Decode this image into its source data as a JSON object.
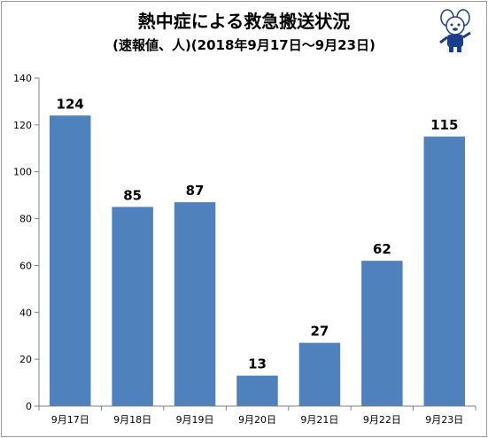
{
  "header": {
    "title": "熱中症による救急搬送状況",
    "subtitle": "(速報値、人)(2018年9月17日～9月23日)"
  },
  "mascot": {
    "icon": "mascot-icon"
  },
  "chart_data": {
    "type": "bar",
    "title": "熱中症による救急搬送状況",
    "subtitle": "(速報値、人)(2018年9月17日～9月23日)",
    "categories": [
      "9月17日",
      "9月18日",
      "9月19日",
      "9月20日",
      "9月21日",
      "9月22日",
      "9月23日"
    ],
    "values": [
      124,
      85,
      87,
      13,
      27,
      62,
      115
    ],
    "xlabel": "",
    "ylabel": "",
    "ylim": [
      0,
      140
    ],
    "yticks": [
      0,
      20,
      40,
      60,
      80,
      100,
      120,
      140
    ],
    "grid": false,
    "legend": "none",
    "bar_color": "#4f81bd",
    "data_labels": true
  }
}
